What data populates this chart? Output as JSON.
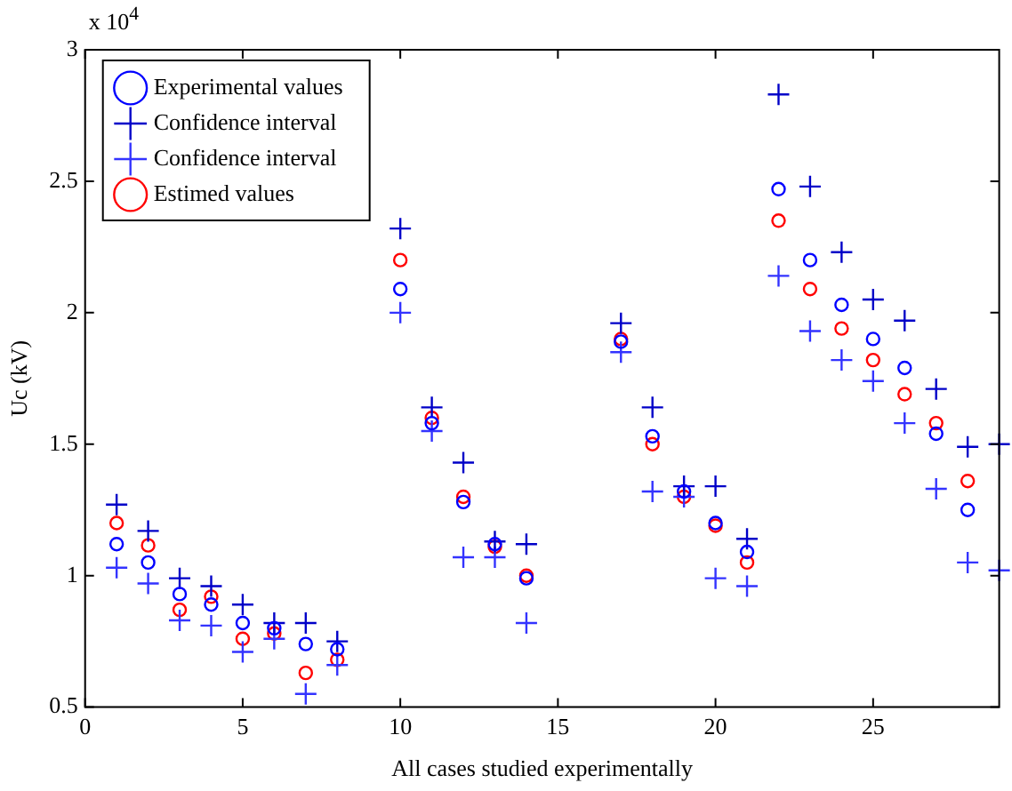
{
  "chart_data": {
    "type": "scatter",
    "xlabel": "All cases studied experimentally",
    "ylabel": "Uc (kV)",
    "annotations": [
      "x 10$^{4}$"
    ],
    "x": [
      1,
      2,
      3,
      4,
      5,
      6,
      7,
      8,
      10,
      11,
      12,
      13,
      14,
      17,
      18,
      19,
      20,
      21,
      22,
      23,
      24,
      25,
      26,
      27,
      28,
      29
    ],
    "series": [
      {
        "name": "Experimental values",
        "color": "#0000ff",
        "marker": "circle",
        "values": [
          1.12,
          1.05,
          0.93,
          0.89,
          0.82,
          0.8,
          0.74,
          0.72,
          2.09,
          1.58,
          1.28,
          1.12,
          0.99,
          1.89,
          1.53,
          1.32,
          1.2,
          1.09,
          2.47,
          2.2,
          2.03,
          1.9,
          1.79,
          1.54,
          1.25,
          null
        ]
      },
      {
        "name": "Confidence interval",
        "color": "#0000c8",
        "marker": "cross",
        "values": [
          1.27,
          1.17,
          0.99,
          0.96,
          0.89,
          0.82,
          0.82,
          0.75,
          2.32,
          1.64,
          1.43,
          1.13,
          1.12,
          1.96,
          1.64,
          1.34,
          1.34,
          1.14,
          2.83,
          2.48,
          2.23,
          2.05,
          1.97,
          1.71,
          1.49,
          1.5
        ]
      },
      {
        "name": "Confidence interval",
        "color": "#3333ff",
        "marker": "cross",
        "values": [
          1.03,
          0.97,
          0.83,
          0.81,
          0.71,
          0.76,
          0.55,
          0.66,
          2.0,
          1.55,
          1.07,
          1.07,
          0.82,
          1.85,
          1.32,
          1.3,
          0.99,
          0.96,
          2.14,
          1.93,
          1.82,
          1.74,
          1.58,
          1.33,
          1.05,
          1.02
        ]
      },
      {
        "name": "Estimed values",
        "color": "#ff0000",
        "marker": "circle",
        "values": [
          1.2,
          1.115,
          0.87,
          0.92,
          0.76,
          0.78,
          0.63,
          0.68,
          2.2,
          1.6,
          1.3,
          1.11,
          1.0,
          1.9,
          1.5,
          1.3,
          1.19,
          1.05,
          2.35,
          2.09,
          1.94,
          1.82,
          1.69,
          1.58,
          1.36,
          null
        ]
      }
    ],
    "xlim": [
      0,
      29
    ],
    "xticks": [
      0,
      5,
      10,
      15,
      20,
      25
    ],
    "ylim": [
      0.5,
      3
    ],
    "yticks": [
      0.5,
      1,
      1.5,
      2,
      2.5,
      3
    ],
    "legend": "top left",
    "grid": false
  }
}
